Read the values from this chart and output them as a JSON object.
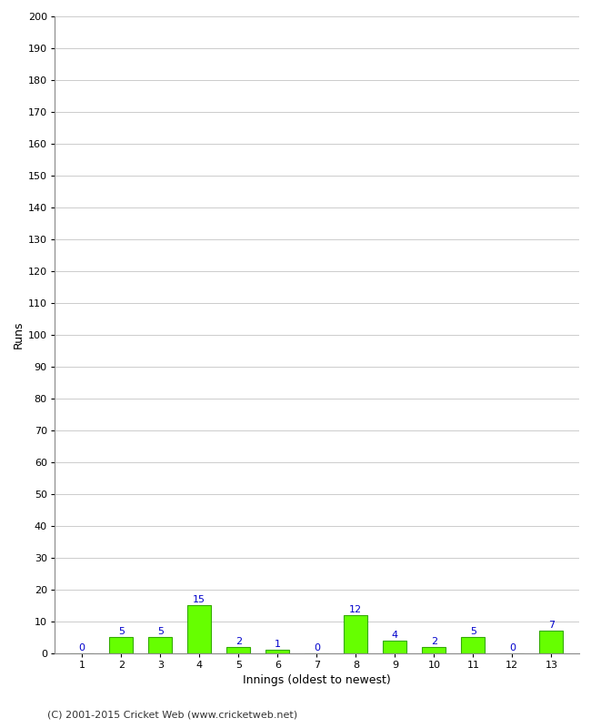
{
  "innings": [
    1,
    2,
    3,
    4,
    5,
    6,
    7,
    8,
    9,
    10,
    11,
    12,
    13
  ],
  "runs": [
    0,
    5,
    5,
    15,
    2,
    1,
    0,
    12,
    4,
    2,
    5,
    0,
    7
  ],
  "bar_color": "#66ff00",
  "bar_edge_color": "#33aa00",
  "label_color": "#0000cc",
  "xlabel": "Innings (oldest to newest)",
  "ylabel": "Runs",
  "ylim": [
    0,
    200
  ],
  "background_color": "#ffffff",
  "grid_color": "#cccccc",
  "footer": "(C) 2001-2015 Cricket Web (www.cricketweb.net)"
}
